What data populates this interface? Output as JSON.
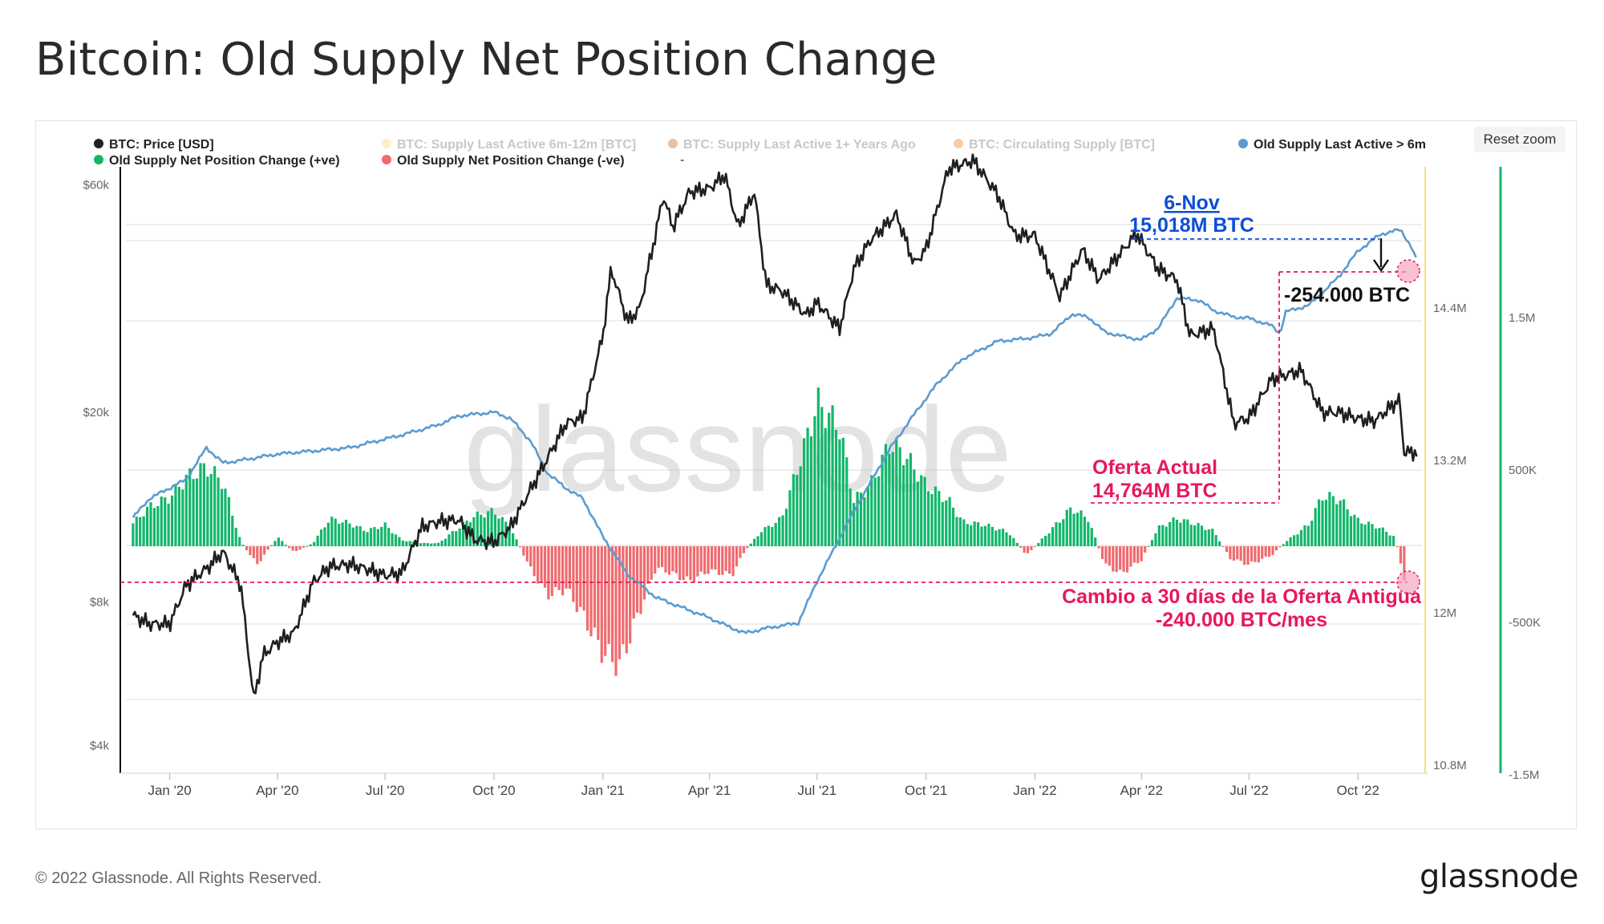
{
  "title": "Bitcoin: Old Supply Net Position Change",
  "reset_zoom_label": "Reset zoom",
  "footer": {
    "copyright": "© 2022 Glassnode. All Rights Reserved.",
    "brand": "glassnode"
  },
  "watermark": "glassnode",
  "colors": {
    "price": "#1f1f1f",
    "old_supply": "#5b9bd0",
    "positive": "#12b66a",
    "negative": "#f06a6e",
    "annotation_red": "#e8175d",
    "annotation_blue": "#0a4fd8",
    "gridline": "#e9e9e9",
    "yellow_axis": "#f5dd7a"
  },
  "chart_data": {
    "type": "line",
    "x_ticks": [
      "Jan '20",
      "Apr '20",
      "Jul '20",
      "Oct '20",
      "Jan '21",
      "Apr '21",
      "Jul '21",
      "Oct '21",
      "Jan '22",
      "Apr '22",
      "Jul '22",
      "Oct '22"
    ],
    "y_left": {
      "label": "",
      "scale": "log",
      "ticks": [
        "$60k",
        "$20k",
        "$8k",
        "$4k"
      ],
      "tick_values": [
        60000,
        20000,
        8000,
        4000
      ]
    },
    "y_supply": {
      "ticks": [
        "14.4M",
        "13.2M",
        "12M",
        "10.8M"
      ],
      "tick_values": [
        14400000,
        13200000,
        12000000,
        10800000
      ]
    },
    "y_change": {
      "ticks": [
        "1.5M",
        "500K",
        "-500K",
        "-1.5M"
      ],
      "tick_values": [
        1500000,
        500000,
        -500000,
        -1500000
      ]
    },
    "legend": [
      {
        "label": "BTC: Price [USD]",
        "color": "#222222",
        "active": true
      },
      {
        "label": "BTC: Supply Last Active 6m-12m [BTC]",
        "color": "#f7e08a",
        "active": false
      },
      {
        "label": "BTC: Supply Last Active 1+ Years Ago",
        "color": "#c9854a",
        "active": false
      },
      {
        "label": "BTC: Circulating Supply [BTC]",
        "color": "#f39a4a",
        "active": false
      },
      {
        "label": "Old Supply Last Active > 6m",
        "color": "#5b9bd0",
        "active": true
      },
      {
        "label": "Old Supply Net Position Change (+ve)",
        "color": "#12b66a",
        "active": true
      },
      {
        "label": "Old Supply Net Position Change (-ve)",
        "color": "#f06a6e",
        "active": true
      },
      {
        "label": "-",
        "color": "",
        "active": true
      }
    ],
    "series": [
      {
        "name": "BTC: Price [USD]",
        "axis": "price",
        "y_scale": "log",
        "points": [
          [
            "2019-12-01",
            7500
          ],
          [
            "2019-12-15",
            7200
          ],
          [
            "2020-01-01",
            7200
          ],
          [
            "2020-01-15",
            8700
          ],
          [
            "2020-02-01",
            9400
          ],
          [
            "2020-02-15",
            10200
          ],
          [
            "2020-03-01",
            8700
          ],
          [
            "2020-03-12",
            5000
          ],
          [
            "2020-03-20",
            6200
          ],
          [
            "2020-04-01",
            6600
          ],
          [
            "2020-04-15",
            6900
          ],
          [
            "2020-05-01",
            8800
          ],
          [
            "2020-05-15",
            9500
          ],
          [
            "2020-06-01",
            9600
          ],
          [
            "2020-06-15",
            9400
          ],
          [
            "2020-07-01",
            9100
          ],
          [
            "2020-07-15",
            9200
          ],
          [
            "2020-08-01",
            11500
          ],
          [
            "2020-08-15",
            11800
          ],
          [
            "2020-09-01",
            11900
          ],
          [
            "2020-09-15",
            10800
          ],
          [
            "2020-10-01",
            10700
          ],
          [
            "2020-10-15",
            11500
          ],
          [
            "2020-11-01",
            13800
          ],
          [
            "2020-11-15",
            16000
          ],
          [
            "2020-12-01",
            19000
          ],
          [
            "2020-12-15",
            19500
          ],
          [
            "2021-01-01",
            29000
          ],
          [
            "2021-01-08",
            40000
          ],
          [
            "2021-01-22",
            31000
          ],
          [
            "2021-02-01",
            33000
          ],
          [
            "2021-02-15",
            48000
          ],
          [
            "2021-02-21",
            57000
          ],
          [
            "2021-03-01",
            49000
          ],
          [
            "2021-03-15",
            58000
          ],
          [
            "2021-04-01",
            59000
          ],
          [
            "2021-04-14",
            63000
          ],
          [
            "2021-04-25",
            49000
          ],
          [
            "2021-05-09",
            58000
          ],
          [
            "2021-05-19",
            37000
          ],
          [
            "2021-06-01",
            36000
          ],
          [
            "2021-06-22",
            32000
          ],
          [
            "2021-07-01",
            34000
          ],
          [
            "2021-07-20",
            30000
          ],
          [
            "2021-08-01",
            40000
          ],
          [
            "2021-08-15",
            46000
          ],
          [
            "2021-09-06",
            52000
          ],
          [
            "2021-09-21",
            41000
          ],
          [
            "2021-10-01",
            44000
          ],
          [
            "2021-10-20",
            65000
          ],
          [
            "2021-11-10",
            67500
          ],
          [
            "2021-12-01",
            57000
          ],
          [
            "2021-12-15",
            47000
          ],
          [
            "2022-01-01",
            47000
          ],
          [
            "2022-01-22",
            35000
          ],
          [
            "2022-02-10",
            44000
          ],
          [
            "2022-02-24",
            38000
          ],
          [
            "2022-03-28",
            47500
          ],
          [
            "2022-04-15",
            40000
          ],
          [
            "2022-05-01",
            38000
          ],
          [
            "2022-05-12",
            29000
          ],
          [
            "2022-06-01",
            30000
          ],
          [
            "2022-06-18",
            19000
          ],
          [
            "2022-07-01",
            19500
          ],
          [
            "2022-07-20",
            23500
          ],
          [
            "2022-08-14",
            24500
          ],
          [
            "2022-09-01",
            20000
          ],
          [
            "2022-09-15",
            20000
          ],
          [
            "2022-10-01",
            19400
          ],
          [
            "2022-10-15",
            19200
          ],
          [
            "2022-11-05",
            21300
          ],
          [
            "2022-11-09",
            16500
          ],
          [
            "2022-11-20",
            16500
          ]
        ]
      },
      {
        "name": "Old Supply Last Active > 6m",
        "axis": "supply",
        "points": [
          [
            "2019-12-01",
            12750000
          ],
          [
            "2019-12-15",
            12900000
          ],
          [
            "2020-01-15",
            13050000
          ],
          [
            "2020-02-01",
            13300000
          ],
          [
            "2020-02-15",
            13180000
          ],
          [
            "2020-03-01",
            13200000
          ],
          [
            "2020-04-01",
            13250000
          ],
          [
            "2020-06-01",
            13300000
          ],
          [
            "2020-07-15",
            13400000
          ],
          [
            "2020-08-15",
            13480000
          ],
          [
            "2020-09-01",
            13550000
          ],
          [
            "2020-10-01",
            13580000
          ],
          [
            "2020-10-15",
            13530000
          ],
          [
            "2020-11-01",
            13350000
          ],
          [
            "2020-11-15",
            13100000
          ],
          [
            "2020-12-01",
            12980000
          ],
          [
            "2020-12-15",
            12900000
          ],
          [
            "2021-01-01",
            12600000
          ],
          [
            "2021-01-22",
            12300000
          ],
          [
            "2021-02-15",
            12120000
          ],
          [
            "2021-03-15",
            12020000
          ],
          [
            "2021-04-01",
            11960000
          ],
          [
            "2021-04-20",
            11880000
          ],
          [
            "2021-05-01",
            11840000
          ],
          [
            "2021-05-20",
            11880000
          ],
          [
            "2021-06-15",
            11920000
          ],
          [
            "2021-07-01",
            12250000
          ],
          [
            "2021-08-01",
            12800000
          ],
          [
            "2021-09-01",
            13300000
          ],
          [
            "2021-09-20",
            13550000
          ],
          [
            "2021-10-10",
            13800000
          ],
          [
            "2021-11-01",
            14000000
          ],
          [
            "2021-12-01",
            14140000
          ],
          [
            "2021-12-15",
            14150000
          ],
          [
            "2022-01-01",
            14170000
          ],
          [
            "2022-01-15",
            14200000
          ],
          [
            "2022-02-01",
            14350000
          ],
          [
            "2022-02-15",
            14330000
          ],
          [
            "2022-03-01",
            14210000
          ],
          [
            "2022-03-15",
            14180000
          ],
          [
            "2022-04-01",
            14150000
          ],
          [
            "2022-04-15",
            14240000
          ],
          [
            "2022-05-01",
            14480000
          ],
          [
            "2022-05-20",
            14460000
          ],
          [
            "2022-06-01",
            14380000
          ],
          [
            "2022-06-18",
            14330000
          ],
          [
            "2022-07-01",
            14320000
          ],
          [
            "2022-07-20",
            14260000
          ],
          [
            "2022-07-27",
            14200000
          ],
          [
            "2022-08-01",
            14370000
          ],
          [
            "2022-08-20",
            14420000
          ],
          [
            "2022-09-01",
            14520000
          ],
          [
            "2022-09-15",
            14650000
          ],
          [
            "2022-10-01",
            14850000
          ],
          [
            "2022-10-20",
            14980000
          ],
          [
            "2022-11-06",
            15018000
          ],
          [
            "2022-11-15",
            14880000
          ],
          [
            "2022-11-20",
            14764000
          ]
        ]
      },
      {
        "name": "Old Supply Net Position Change",
        "axis": "change",
        "type": "bar",
        "points": [
          [
            "2019-12-01",
            150000
          ],
          [
            "2019-12-15",
            260000
          ],
          [
            "2020-01-01",
            320000
          ],
          [
            "2020-01-15",
            450000
          ],
          [
            "2020-02-01",
            520000
          ],
          [
            "2020-02-15",
            420000
          ],
          [
            "2020-03-01",
            30000
          ],
          [
            "2020-03-15",
            -120000
          ],
          [
            "2020-04-01",
            60000
          ],
          [
            "2020-04-15",
            -40000
          ],
          [
            "2020-05-01",
            20000
          ],
          [
            "2020-05-15",
            180000
          ],
          [
            "2020-06-01",
            150000
          ],
          [
            "2020-06-15",
            100000
          ],
          [
            "2020-07-01",
            140000
          ],
          [
            "2020-07-15",
            40000
          ],
          [
            "2020-08-01",
            20000
          ],
          [
            "2020-08-15",
            20000
          ],
          [
            "2020-09-01",
            120000
          ],
          [
            "2020-09-15",
            200000
          ],
          [
            "2020-10-01",
            230000
          ],
          [
            "2020-10-15",
            120000
          ],
          [
            "2020-11-01",
            -150000
          ],
          [
            "2020-11-15",
            -320000
          ],
          [
            "2020-12-01",
            -280000
          ],
          [
            "2020-12-15",
            -450000
          ],
          [
            "2021-01-01",
            -700000
          ],
          [
            "2021-01-15",
            -780000
          ],
          [
            "2021-02-01",
            -420000
          ],
          [
            "2021-02-15",
            -140000
          ],
          [
            "2021-03-01",
            -180000
          ],
          [
            "2021-03-15",
            -230000
          ],
          [
            "2021-04-01",
            -160000
          ],
          [
            "2021-04-20",
            -190000
          ],
          [
            "2021-05-01",
            -30000
          ],
          [
            "2021-05-15",
            100000
          ],
          [
            "2021-06-01",
            180000
          ],
          [
            "2021-06-20",
            650000
          ],
          [
            "2021-07-01",
            940000
          ],
          [
            "2021-07-20",
            780000
          ],
          [
            "2021-08-01",
            300000
          ],
          [
            "2021-08-15",
            400000
          ],
          [
            "2021-09-01",
            680000
          ],
          [
            "2021-09-15",
            580000
          ],
          [
            "2021-10-01",
            400000
          ],
          [
            "2021-10-20",
            300000
          ],
          [
            "2021-11-01",
            160000
          ],
          [
            "2021-11-20",
            140000
          ],
          [
            "2021-12-10",
            90000
          ],
          [
            "2021-12-25",
            -60000
          ],
          [
            "2022-01-10",
            70000
          ],
          [
            "2022-02-01",
            250000
          ],
          [
            "2022-02-15",
            180000
          ],
          [
            "2022-03-01",
            -120000
          ],
          [
            "2022-03-15",
            -180000
          ],
          [
            "2022-04-01",
            -90000
          ],
          [
            "2022-04-15",
            120000
          ],
          [
            "2022-05-01",
            180000
          ],
          [
            "2022-05-15",
            150000
          ],
          [
            "2022-06-01",
            100000
          ],
          [
            "2022-06-15",
            -80000
          ],
          [
            "2022-07-01",
            -120000
          ],
          [
            "2022-07-20",
            -60000
          ],
          [
            "2022-08-01",
            30000
          ],
          [
            "2022-08-20",
            140000
          ],
          [
            "2022-09-01",
            330000
          ],
          [
            "2022-09-15",
            310000
          ],
          [
            "2022-10-01",
            170000
          ],
          [
            "2022-10-20",
            120000
          ],
          [
            "2022-11-01",
            60000
          ],
          [
            "2022-11-10",
            -240000
          ]
        ]
      }
    ],
    "annotations": {
      "peak": {
        "date": "6-Nov",
        "value": "15,018M BTC"
      },
      "drop": {
        "label": "-254.000 BTC"
      },
      "current": {
        "title": "Oferta Actual",
        "value": "14,764M BTC"
      },
      "change": {
        "title": "Cambio a 30 días de la Oferta Antigua",
        "value": "-240.000 BTC/mes"
      }
    }
  }
}
